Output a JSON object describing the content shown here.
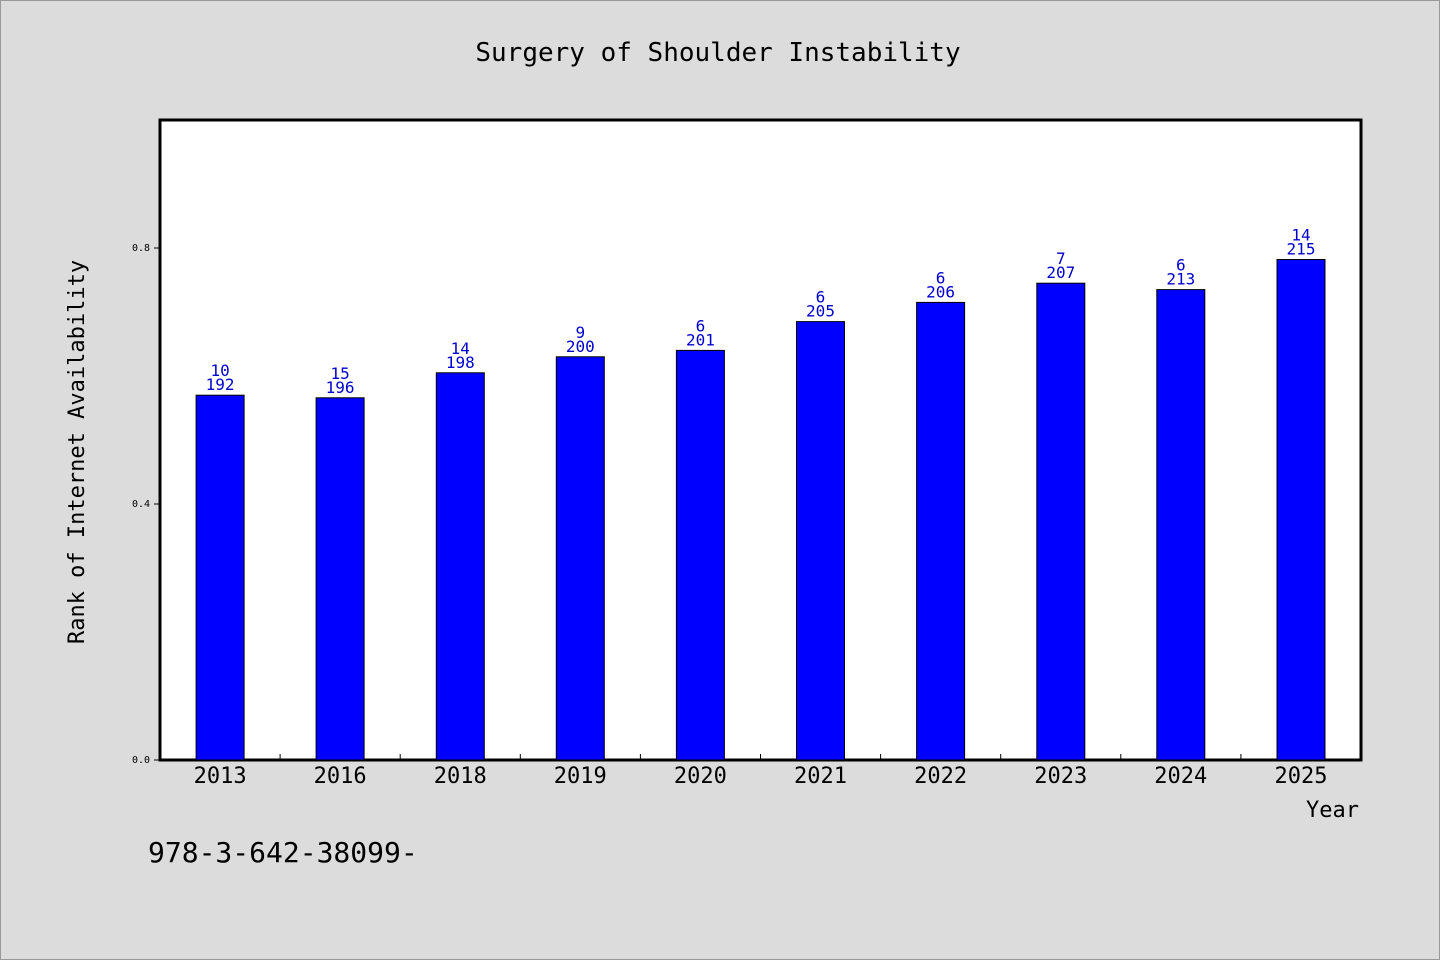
{
  "chart_data": {
    "type": "bar",
    "title": "Surgery of Shoulder Instability",
    "xlabel": "Year",
    "ylabel": "Rank of Internet Availability",
    "categories": [
      "2013",
      "2016",
      "2018",
      "2019",
      "2020",
      "2021",
      "2022",
      "2023",
      "2024",
      "2025"
    ],
    "values": [
      0.57,
      0.566,
      0.605,
      0.63,
      0.64,
      0.685,
      0.715,
      0.745,
      0.735,
      0.782
    ],
    "label_top": [
      "10",
      "15",
      "14",
      "9",
      "6",
      "6",
      "6",
      "7",
      "6",
      "14"
    ],
    "label_bottom": [
      "192",
      "196",
      "198",
      "200",
      "201",
      "205",
      "206",
      "207",
      "213",
      "215"
    ],
    "ylim": [
      0.0,
      1.0
    ],
    "yticks": [
      0.0,
      0.4,
      0.8
    ],
    "ytick_labels": [
      "0.0",
      "0.4",
      "0.8"
    ],
    "grid": false,
    "bar_color": "#0000ff",
    "label_color": "#0000cc"
  },
  "footer_text": "978-3-642-38099-"
}
